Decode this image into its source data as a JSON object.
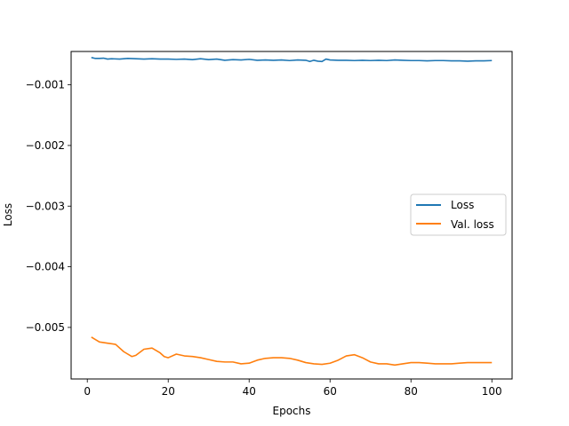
{
  "chart_data": {
    "type": "line",
    "title": "",
    "xlabel": "Epochs",
    "ylabel": "Loss",
    "xlim": [
      -4.0,
      105.0
    ],
    "ylim": [
      -0.00585,
      -0.00045
    ],
    "x_ticks": [
      0,
      20,
      40,
      60,
      80,
      100
    ],
    "x_tick_labels": [
      "0",
      "20",
      "40",
      "60",
      "80",
      "100"
    ],
    "y_ticks": [
      -0.001,
      -0.002,
      -0.003,
      -0.004,
      -0.005
    ],
    "y_tick_labels": [
      "−0.001",
      "−0.002",
      "−0.003",
      "−0.004",
      "−0.005"
    ],
    "grid": false,
    "legend": {
      "placement": "center-right",
      "entries": [
        "Loss",
        "Val. loss"
      ]
    },
    "series": [
      {
        "name": "Loss",
        "color": "#1f77b4",
        "points": [
          [
            1,
            -0.00055
          ],
          [
            2,
            -0.000565
          ],
          [
            3,
            -0.000565
          ],
          [
            4,
            -0.00056
          ],
          [
            5,
            -0.000575
          ],
          [
            6,
            -0.00057
          ],
          [
            8,
            -0.000575
          ],
          [
            10,
            -0.000565
          ],
          [
            12,
            -0.00057
          ],
          [
            14,
            -0.000575
          ],
          [
            16,
            -0.00057
          ],
          [
            18,
            -0.000575
          ],
          [
            20,
            -0.000575
          ],
          [
            22,
            -0.00058
          ],
          [
            24,
            -0.000575
          ],
          [
            26,
            -0.000585
          ],
          [
            28,
            -0.00057
          ],
          [
            30,
            -0.000585
          ],
          [
            32,
            -0.000575
          ],
          [
            34,
            -0.000595
          ],
          [
            36,
            -0.000585
          ],
          [
            38,
            -0.00059
          ],
          [
            40,
            -0.00058
          ],
          [
            42,
            -0.000595
          ],
          [
            44,
            -0.00059
          ],
          [
            46,
            -0.000595
          ],
          [
            48,
            -0.00059
          ],
          [
            50,
            -0.0006
          ],
          [
            52,
            -0.00059
          ],
          [
            54,
            -0.000595
          ],
          [
            55,
            -0.000615
          ],
          [
            56,
            -0.000595
          ],
          [
            57,
            -0.00061
          ],
          [
            58,
            -0.000615
          ],
          [
            59,
            -0.000575
          ],
          [
            60,
            -0.00059
          ],
          [
            62,
            -0.000595
          ],
          [
            64,
            -0.000595
          ],
          [
            66,
            -0.0006
          ],
          [
            68,
            -0.000595
          ],
          [
            70,
            -0.0006
          ],
          [
            72,
            -0.000595
          ],
          [
            74,
            -0.0006
          ],
          [
            76,
            -0.00059
          ],
          [
            78,
            -0.000595
          ],
          [
            80,
            -0.0006
          ],
          [
            82,
            -0.0006
          ],
          [
            84,
            -0.000605
          ],
          [
            86,
            -0.0006
          ],
          [
            88,
            -0.0006
          ],
          [
            90,
            -0.000605
          ],
          [
            92,
            -0.000605
          ],
          [
            94,
            -0.00061
          ],
          [
            96,
            -0.000605
          ],
          [
            98,
            -0.000605
          ],
          [
            100,
            -0.0006
          ]
        ]
      },
      {
        "name": "Val. loss",
        "color": "#ff7f0e",
        "points": [
          [
            1,
            -0.00516
          ],
          [
            3,
            -0.00524
          ],
          [
            5,
            -0.00526
          ],
          [
            7,
            -0.00528
          ],
          [
            9,
            -0.0054
          ],
          [
            11,
            -0.00548
          ],
          [
            12,
            -0.00546
          ],
          [
            14,
            -0.00536
          ],
          [
            16,
            -0.00534
          ],
          [
            18,
            -0.00542
          ],
          [
            19,
            -0.00548
          ],
          [
            20,
            -0.0055
          ],
          [
            22,
            -0.00544
          ],
          [
            24,
            -0.00547
          ],
          [
            26,
            -0.00548
          ],
          [
            28,
            -0.0055
          ],
          [
            30,
            -0.00553
          ],
          [
            32,
            -0.00556
          ],
          [
            34,
            -0.00557
          ],
          [
            36,
            -0.00557
          ],
          [
            38,
            -0.0056
          ],
          [
            40,
            -0.00559
          ],
          [
            42,
            -0.00554
          ],
          [
            44,
            -0.00551
          ],
          [
            46,
            -0.0055
          ],
          [
            48,
            -0.0055
          ],
          [
            50,
            -0.00551
          ],
          [
            52,
            -0.00554
          ],
          [
            54,
            -0.00558
          ],
          [
            56,
            -0.0056
          ],
          [
            58,
            -0.00561
          ],
          [
            60,
            -0.00559
          ],
          [
            62,
            -0.00554
          ],
          [
            64,
            -0.00547
          ],
          [
            66,
            -0.00545
          ],
          [
            68,
            -0.0055
          ],
          [
            70,
            -0.00557
          ],
          [
            72,
            -0.0056
          ],
          [
            74,
            -0.0056
          ],
          [
            76,
            -0.00562
          ],
          [
            78,
            -0.0056
          ],
          [
            80,
            -0.00558
          ],
          [
            82,
            -0.00558
          ],
          [
            84,
            -0.00559
          ],
          [
            86,
            -0.0056
          ],
          [
            88,
            -0.0056
          ],
          [
            90,
            -0.0056
          ],
          [
            92,
            -0.00559
          ],
          [
            94,
            -0.00558
          ],
          [
            96,
            -0.00558
          ],
          [
            98,
            -0.00558
          ],
          [
            100,
            -0.00558
          ]
        ]
      }
    ]
  }
}
